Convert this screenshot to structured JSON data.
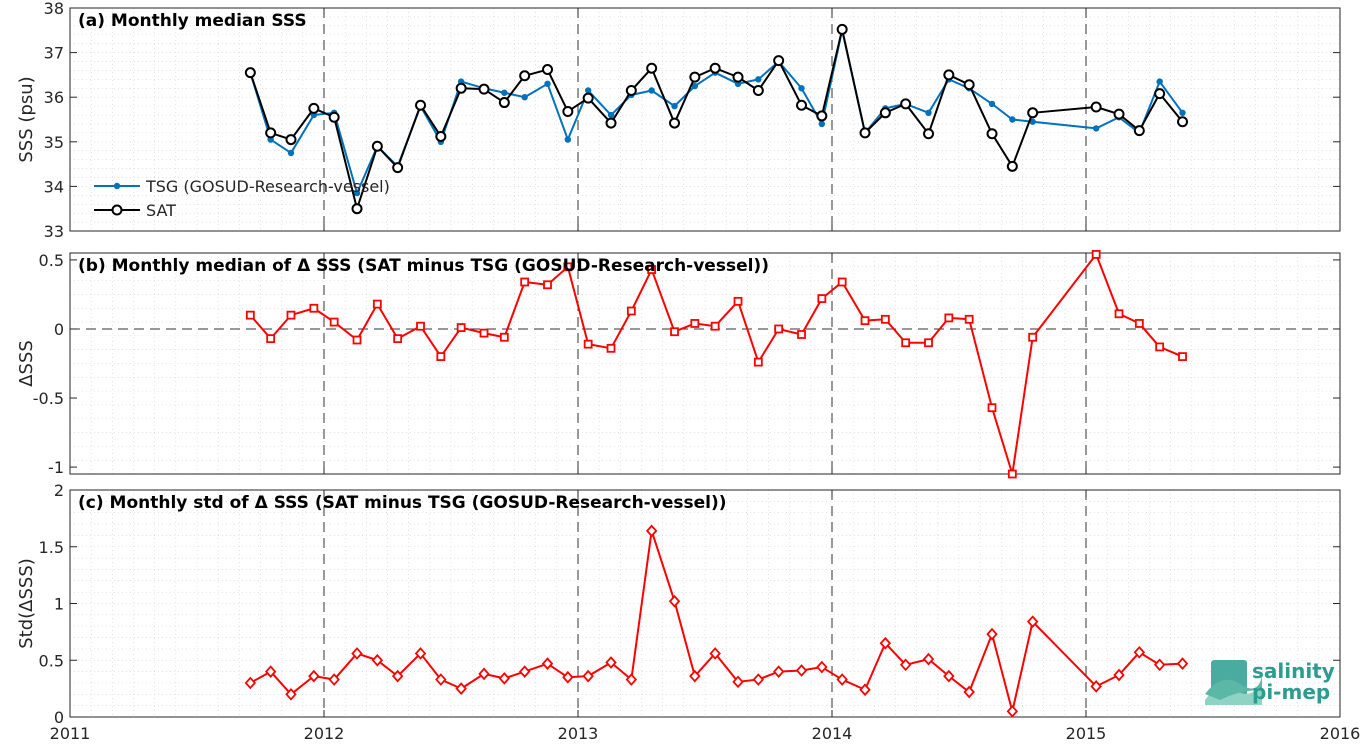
{
  "colors": {
    "tsg": "#0072BD",
    "sat": "#000000",
    "delta": "#FF0000",
    "logo": "#2a9d8f"
  },
  "logo": {
    "line1": "salinity",
    "line2": "pi-mep"
  },
  "x_axis": {
    "range": [
      2011,
      2016
    ],
    "ticks": [
      2011,
      2012,
      2013,
      2014,
      2015,
      2016
    ],
    "tick_labels": [
      "2011",
      "2012",
      "2013",
      "2014",
      "2015",
      "2016"
    ]
  },
  "chart_data": [
    {
      "type": "line",
      "title": "(a) Monthly median SSS",
      "ylabel": "SSS (psu)",
      "ylim": [
        33,
        38
      ],
      "yticks": [
        33,
        34,
        35,
        36,
        37,
        38
      ],
      "ytick_labels": [
        "33",
        "34",
        "35",
        "36",
        "37",
        "38"
      ],
      "grid": true,
      "legend_position": "bottom-left",
      "series": [
        {
          "name": "TSG (GOSUD-Research-vessel)",
          "marker": "dot",
          "x": [
            2011.71,
            2011.79,
            2011.87,
            2011.96,
            2012.04,
            2012.13,
            2012.21,
            2012.29,
            2012.38,
            2012.46,
            2012.54,
            2012.63,
            2012.71,
            2012.79,
            2012.88,
            2012.96,
            2013.04,
            2013.13,
            2013.21,
            2013.29,
            2013.38,
            2013.46,
            2013.54,
            2013.63,
            2013.71,
            2013.79,
            2013.88,
            2013.96,
            2014.04,
            2014.13,
            2014.21,
            2014.29,
            2014.38,
            2014.46,
            2014.54,
            2014.63,
            2014.71,
            2014.79,
            2015.04,
            2015.13,
            2015.21,
            2015.29,
            2015.38
          ],
          "y": [
            36.55,
            35.05,
            34.75,
            35.6,
            35.65,
            33.85,
            34.9,
            34.45,
            35.8,
            35.0,
            36.35,
            36.2,
            36.1,
            36.0,
            36.3,
            35.05,
            36.15,
            35.6,
            36.05,
            36.15,
            35.8,
            36.25,
            36.55,
            36.3,
            36.4,
            36.8,
            36.2,
            35.4,
            37.5,
            35.2,
            35.75,
            35.85,
            35.65,
            36.4,
            36.2,
            35.85,
            35.5,
            35.45,
            35.3,
            35.55,
            35.2,
            36.35,
            35.65
          ]
        },
        {
          "name": "SAT",
          "marker": "circle",
          "x": [
            2011.71,
            2011.79,
            2011.87,
            2011.96,
            2012.04,
            2012.13,
            2012.21,
            2012.29,
            2012.38,
            2012.46,
            2012.54,
            2012.63,
            2012.71,
            2012.79,
            2012.88,
            2012.96,
            2013.04,
            2013.13,
            2013.21,
            2013.29,
            2013.38,
            2013.46,
            2013.54,
            2013.63,
            2013.71,
            2013.79,
            2013.88,
            2013.96,
            2014.04,
            2014.13,
            2014.21,
            2014.29,
            2014.38,
            2014.46,
            2014.54,
            2014.63,
            2014.71,
            2014.79,
            2015.04,
            2015.13,
            2015.21,
            2015.29,
            2015.38
          ],
          "y": [
            36.55,
            35.2,
            35.05,
            35.75,
            35.55,
            33.5,
            34.9,
            34.42,
            35.82,
            35.12,
            36.2,
            36.18,
            35.88,
            36.48,
            36.62,
            35.68,
            35.98,
            35.42,
            36.15,
            36.65,
            35.42,
            36.45,
            36.65,
            36.45,
            36.15,
            36.82,
            35.82,
            35.58,
            37.52,
            35.2,
            35.65,
            35.85,
            35.18,
            36.5,
            36.28,
            35.18,
            34.45,
            35.65,
            35.78,
            35.62,
            35.25,
            36.08,
            35.45
          ]
        }
      ]
    },
    {
      "type": "line",
      "title": "(b) Monthly median of Δ SSS (SAT minus TSG (GOSUD-Research-vessel))",
      "ylabel": "ΔSSS",
      "ylim": [
        -1.05,
        0.55
      ],
      "yticks": [
        -1,
        -0.5,
        0,
        0.5
      ],
      "ytick_labels": [
        "-1",
        "-0.5",
        "0",
        "0.5"
      ],
      "grid": true,
      "zero_line": true,
      "series": [
        {
          "name": "",
          "marker": "square",
          "x": [
            2011.71,
            2011.79,
            2011.87,
            2011.96,
            2012.04,
            2012.13,
            2012.21,
            2012.29,
            2012.38,
            2012.46,
            2012.54,
            2012.63,
            2012.71,
            2012.79,
            2012.88,
            2012.96,
            2013.04,
            2013.13,
            2013.21,
            2013.29,
            2013.38,
            2013.46,
            2013.54,
            2013.63,
            2013.71,
            2013.79,
            2013.88,
            2013.96,
            2014.04,
            2014.13,
            2014.21,
            2014.29,
            2014.38,
            2014.46,
            2014.54,
            2014.63,
            2014.71,
            2014.79,
            2015.04,
            2015.13,
            2015.21,
            2015.29,
            2015.38
          ],
          "y": [
            0.1,
            -0.07,
            0.1,
            0.15,
            0.05,
            -0.08,
            0.18,
            -0.07,
            0.02,
            -0.2,
            0.01,
            -0.03,
            -0.06,
            0.34,
            0.32,
            0.45,
            -0.11,
            -0.14,
            0.13,
            0.43,
            -0.02,
            0.04,
            0.02,
            0.2,
            -0.24,
            0.0,
            -0.04,
            0.22,
            0.34,
            0.06,
            0.07,
            -0.1,
            -0.1,
            0.08,
            0.07,
            -0.57,
            -1.05,
            -0.06,
            0.54,
            0.11,
            0.04,
            -0.13,
            -0.2
          ]
        }
      ]
    },
    {
      "type": "line",
      "title": "(c) Monthly std of Δ SSS (SAT minus TSG (GOSUD-Research-vessel))",
      "ylabel": "Std(ΔSSS)",
      "ylim": [
        0,
        2
      ],
      "yticks": [
        0,
        0.5,
        1,
        1.5,
        2
      ],
      "ytick_labels": [
        "0",
        "0.5",
        "1",
        "1.5",
        "2"
      ],
      "grid": true,
      "series": [
        {
          "name": "",
          "marker": "diamond",
          "x": [
            2011.71,
            2011.79,
            2011.87,
            2011.96,
            2012.04,
            2012.13,
            2012.21,
            2012.29,
            2012.38,
            2012.46,
            2012.54,
            2012.63,
            2012.71,
            2012.79,
            2012.88,
            2012.96,
            2013.04,
            2013.13,
            2013.21,
            2013.29,
            2013.38,
            2013.46,
            2013.54,
            2013.63,
            2013.71,
            2013.79,
            2013.88,
            2013.96,
            2014.04,
            2014.13,
            2014.21,
            2014.29,
            2014.38,
            2014.46,
            2014.54,
            2014.63,
            2014.71,
            2014.79,
            2015.04,
            2015.13,
            2015.21,
            2015.29,
            2015.38
          ],
          "y": [
            0.3,
            0.4,
            0.2,
            0.36,
            0.33,
            0.56,
            0.5,
            0.36,
            0.56,
            0.33,
            0.25,
            0.38,
            0.34,
            0.4,
            0.47,
            0.35,
            0.36,
            0.48,
            0.33,
            1.64,
            1.02,
            0.36,
            0.56,
            0.31,
            0.33,
            0.4,
            0.41,
            0.44,
            0.33,
            0.24,
            0.65,
            0.46,
            0.51,
            0.36,
            0.22,
            0.73,
            0.05,
            0.84,
            0.27,
            0.37,
            0.57,
            0.46,
            0.47
          ]
        }
      ]
    }
  ]
}
